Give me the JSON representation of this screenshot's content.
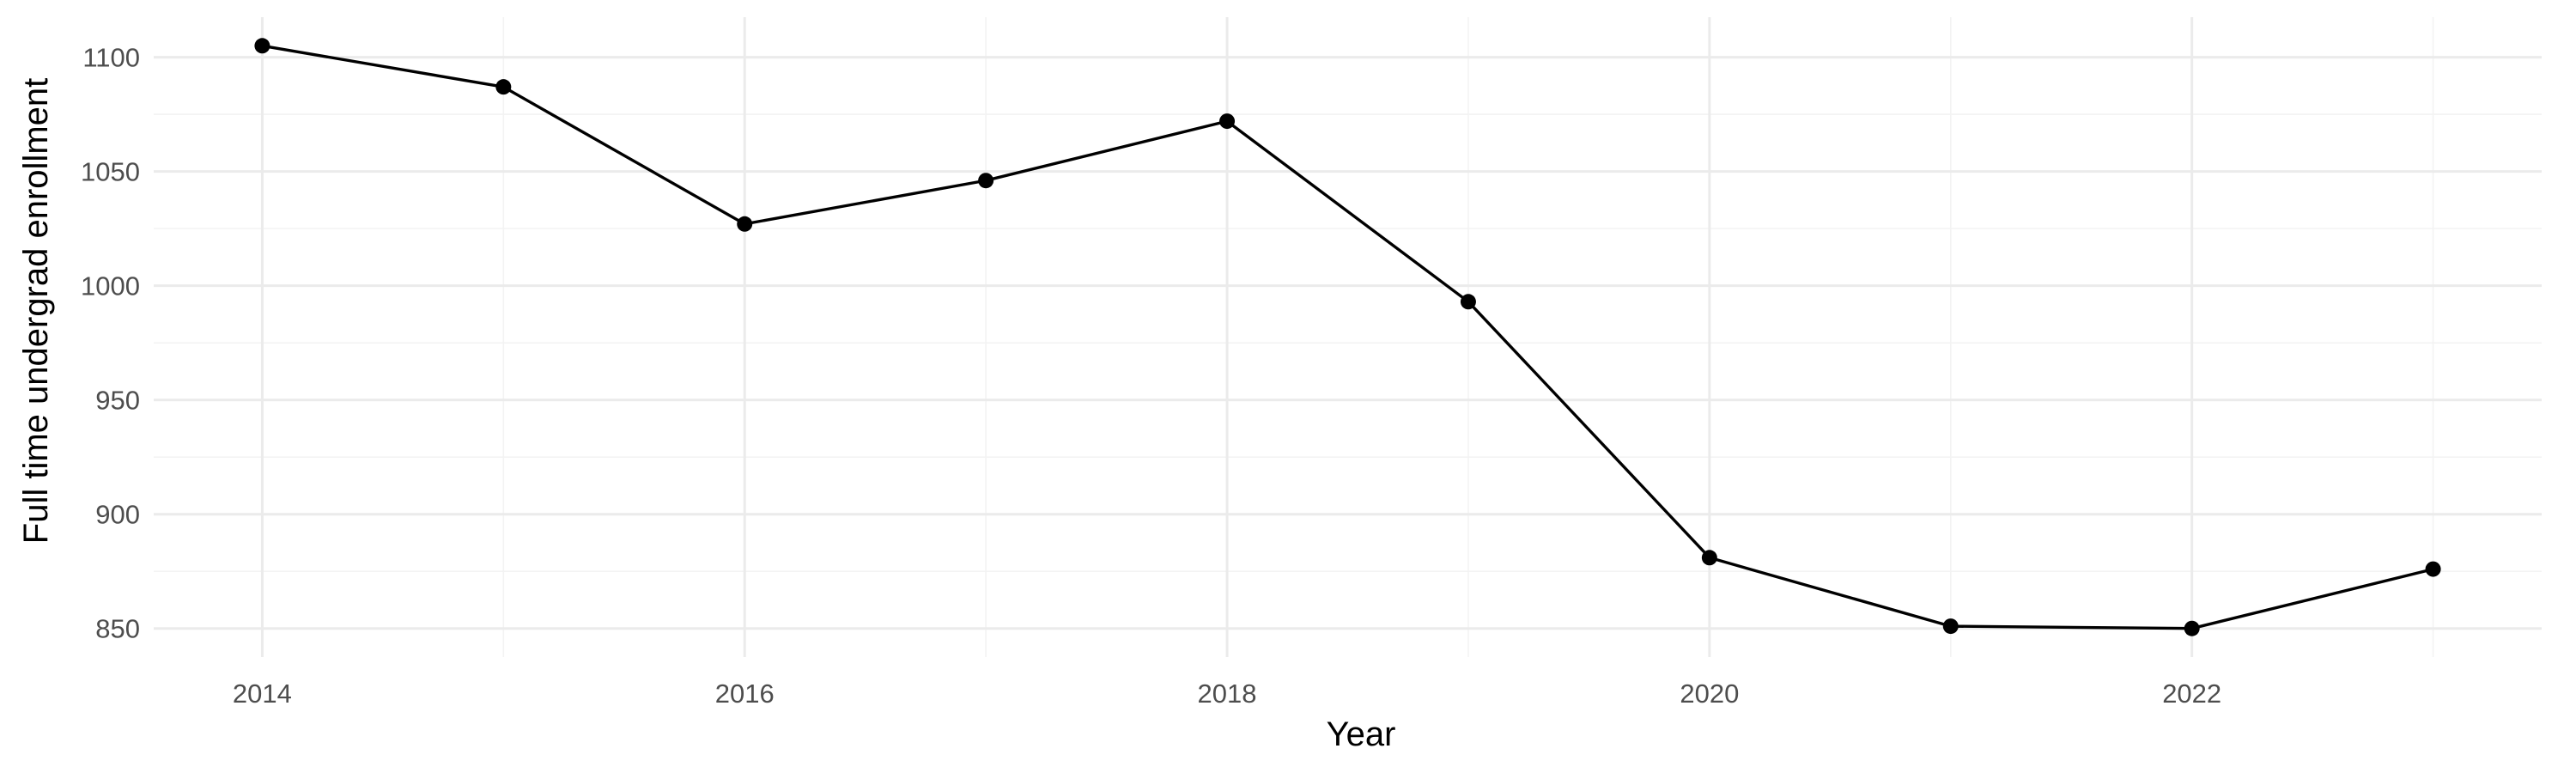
{
  "chart_data": {
    "type": "line",
    "title": "",
    "xlabel": "Year",
    "ylabel": "Full time undergrad enrollment",
    "x": [
      2014,
      2015,
      2016,
      2017,
      2018,
      2019,
      2020,
      2021,
      2022,
      2023
    ],
    "series": [
      {
        "values": [
          1105,
          1087,
          1027,
          1046,
          1072,
          993,
          881,
          851,
          850,
          876
        ],
        "color": "#000000"
      }
    ],
    "xlim": [
      2013.55,
      2023.45
    ],
    "ylim": [
      837.5,
      1117.5
    ],
    "x_ticks": [
      2014,
      2016,
      2018,
      2020,
      2022
    ],
    "x_tick_labels": [
      "2014",
      "2016",
      "2018",
      "2020",
      "2022"
    ],
    "y_ticks": [
      850,
      900,
      950,
      1000,
      1050,
      1100
    ],
    "y_tick_labels": [
      "850",
      "900",
      "950",
      "1000",
      "1050",
      "1100"
    ],
    "x_minor_ticks": [
      2015,
      2017,
      2019,
      2021,
      2023
    ],
    "y_minor_ticks": [
      875,
      925,
      975,
      1025,
      1075
    ],
    "grid": true,
    "legend": "none",
    "background": "#ffffff",
    "grid_color": "#ebebeb",
    "point_color": "#000000",
    "line_color": "#000000"
  }
}
